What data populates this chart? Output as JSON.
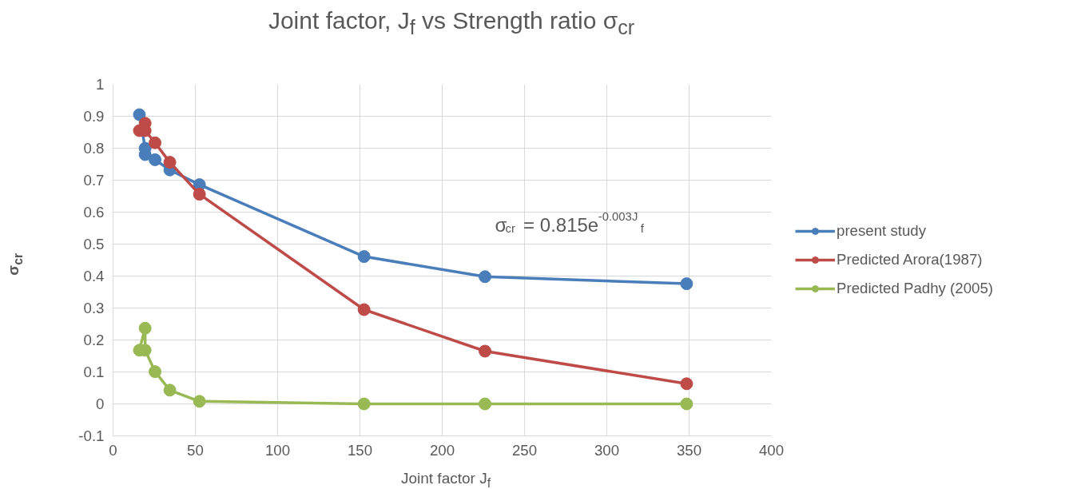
{
  "chart_data": {
    "type": "line",
    "title": "Joint factor, J$_{f}$ vs Strength ratio σ$_{cr}$",
    "xlabel": "Joint factor J$_{f}$",
    "ylabel": "σ$_{cr}$",
    "x": [
      16,
      19.5,
      19.5,
      25.5,
      34.5,
      52.5,
      152.5,
      226,
      348.5
    ],
    "series": [
      {
        "name": "present study",
        "color": "#4a7ebb",
        "values": [
          0.905,
          0.8,
          0.78,
          0.764,
          0.732,
          0.686,
          0.461,
          0.398,
          0.376
        ]
      },
      {
        "name": "Predicted Arora(1987)",
        "color": "#be4b48",
        "values": [
          0.855,
          0.878,
          0.855,
          0.817,
          0.756,
          0.656,
          0.295,
          0.165,
          0.063
        ]
      },
      {
        "name": "Predicted Padhy (2005)",
        "color": "#98b954",
        "values": [
          0.168,
          0.237,
          0.168,
          0.101,
          0.043,
          0.008,
          0.0,
          0.0,
          0.0
        ]
      }
    ],
    "annotations": [
      "σ$_{cr}$ = 0.815e$^{-0.003J}$$_{f}$"
    ],
    "xlim": [
      0,
      400
    ],
    "xticks": [
      0,
      50,
      100,
      150,
      200,
      250,
      300,
      350,
      400
    ],
    "ylim": [
      -0.1,
      1
    ],
    "yticks": [
      -0.1,
      0,
      0.1,
      0.2,
      0.3,
      0.4,
      0.5,
      0.6,
      0.7,
      0.8,
      0.9,
      1
    ],
    "grid": true,
    "legend": "right",
    "marker": "circle",
    "line_style": "solid"
  }
}
